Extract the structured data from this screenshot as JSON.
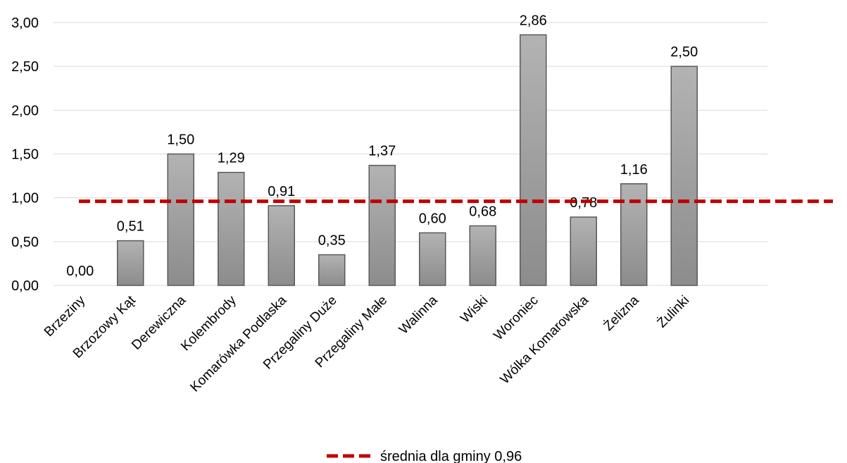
{
  "chart_data": {
    "type": "bar",
    "ylabel": "",
    "xlabel": "",
    "ylim": [
      0,
      3
    ],
    "y_ticks": [
      0,
      0.5,
      1,
      1.5,
      2,
      2.5,
      3
    ],
    "y_tick_labels": [
      "0,00",
      "0,50",
      "1,00",
      "1,50",
      "2,00",
      "2,50",
      "3,00"
    ],
    "grid": true,
    "categories": [
      "Brzeziny",
      "Brzozowy Kąt",
      "Derewiczna",
      "Kolembrody",
      "Komarówka Podlaska",
      "Przegaliny Duże",
      "Przegaliny Małe",
      "Walinna",
      "Wiski",
      "Woroniec",
      "Wólka Komarowska",
      "Żelizna",
      "Żulinki"
    ],
    "values": [
      0.0,
      0.51,
      1.5,
      1.29,
      0.91,
      0.35,
      1.37,
      0.6,
      0.68,
      2.86,
      0.78,
      1.16,
      2.5
    ],
    "value_labels": [
      "0,00",
      "0,51",
      "1,50",
      "1,29",
      "0,91",
      "0,35",
      "1,37",
      "0,60",
      "0,68",
      "2,86",
      "0,78",
      "1,16",
      "2,50"
    ],
    "reference_line": {
      "value": 0.96,
      "label": "średnia dla gminy 0,96",
      "color": "#c00000",
      "style": "dashed"
    },
    "bar_color": "#a6a6a6",
    "legend_position": "bottom"
  }
}
